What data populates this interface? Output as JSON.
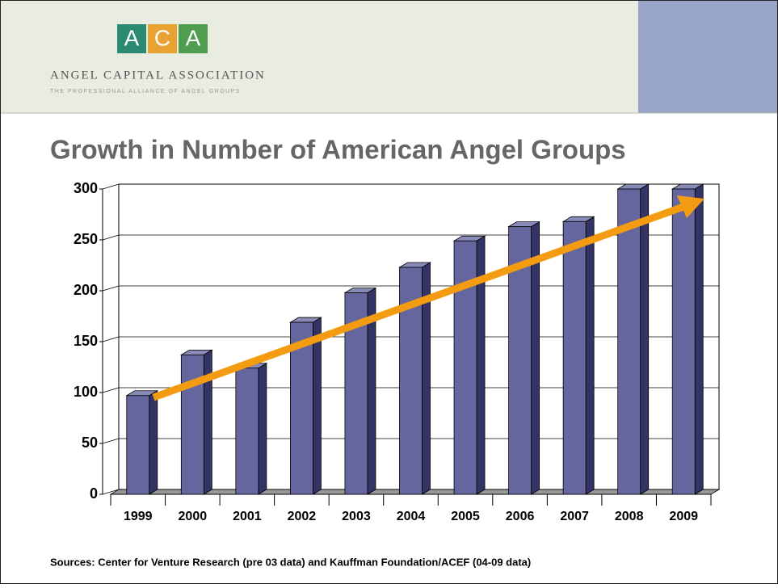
{
  "header": {
    "logo_letters": [
      "A",
      "C",
      "A"
    ],
    "organization": "ANGEL CAPITAL ASSOCIATION",
    "tagline": "THE PROFESSIONAL ALLIANCE OF ANGEL GROUPS"
  },
  "chart_data": {
    "type": "bar",
    "title": "Growth in Number of American Angel Groups",
    "categories": [
      "1999",
      "2000",
      "2001",
      "2002",
      "2003",
      "2004",
      "2005",
      "2006",
      "2007",
      "2008",
      "2009"
    ],
    "values": [
      97,
      137,
      124,
      169,
      198,
      223,
      249,
      263,
      268,
      300,
      300
    ],
    "color": "#66669e",
    "ylim": [
      0,
      300
    ],
    "yticks": [
      0,
      50,
      100,
      150,
      200,
      250,
      300
    ],
    "grid": true,
    "annotation": "Sources:  Center for Venture Research (pre 03 data) and Kauffman Foundation/ACEF (04-09 data)"
  }
}
